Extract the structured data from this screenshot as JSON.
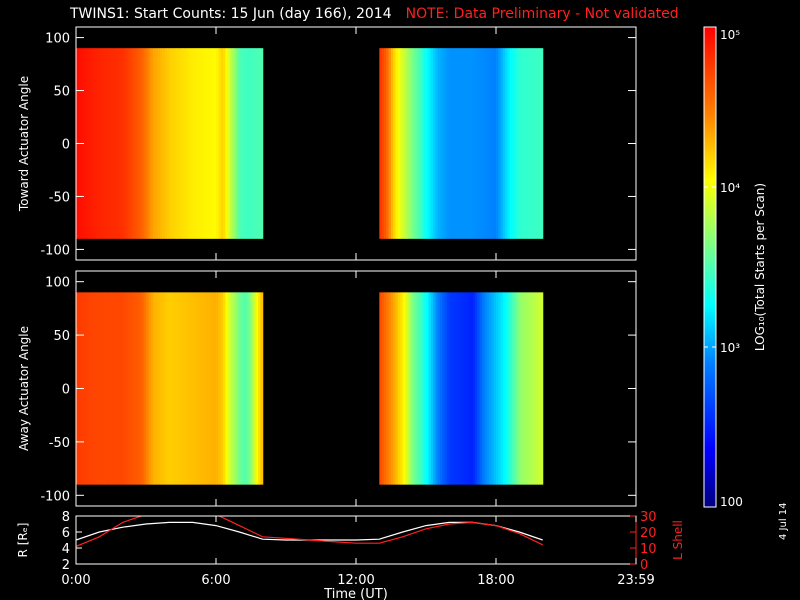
{
  "title": "TWINS1: Start Counts: 15 Jun (day 166), 2014",
  "note": "NOTE: Data Preliminary - Not validated",
  "datestamp": "4 Jul 14",
  "colors": {
    "background": "#000000",
    "foreground": "#ffffff",
    "note": "#ff2020",
    "lshell": "#ff2020",
    "r_line": "#ffffff"
  },
  "chart_data": [
    {
      "type": "heatmap",
      "panel": "toward",
      "ylabel": "Toward Actuator Angle",
      "ylim": [
        -110,
        110
      ],
      "yticks": [
        100,
        50,
        0,
        -50,
        -100
      ],
      "xlim": [
        0,
        24
      ],
      "y_range": [
        -90,
        90
      ],
      "segments": [
        {
          "start_hr": 0.0,
          "end_hr": 8.0
        },
        {
          "start_hr": 13.0,
          "end_hr": 20.0
        }
      ],
      "log_counts_profile": [
        {
          "t": 0.0,
          "v": 4.95
        },
        {
          "t": 0.5,
          "v": 4.9
        },
        {
          "t": 1.0,
          "v": 4.85
        },
        {
          "t": 2.0,
          "v": 4.8
        },
        {
          "t": 2.8,
          "v": 4.6
        },
        {
          "t": 3.3,
          "v": 4.35
        },
        {
          "t": 4.0,
          "v": 4.2
        },
        {
          "t": 5.0,
          "v": 4.1
        },
        {
          "t": 6.0,
          "v": 4.05
        },
        {
          "t": 6.3,
          "v": 4.2
        },
        {
          "t": 6.6,
          "v": 3.9
        },
        {
          "t": 7.0,
          "v": 3.5
        },
        {
          "t": 7.3,
          "v": 3.45
        },
        {
          "t": 8.0,
          "v": 3.5
        },
        {
          "t": 13.0,
          "v": 4.8
        },
        {
          "t": 13.3,
          "v": 4.6
        },
        {
          "t": 13.6,
          "v": 4.2
        },
        {
          "t": 14.0,
          "v": 3.9
        },
        {
          "t": 14.5,
          "v": 3.6
        },
        {
          "t": 15.0,
          "v": 3.3
        },
        {
          "t": 15.5,
          "v": 3.05
        },
        {
          "t": 16.0,
          "v": 2.95
        },
        {
          "t": 17.0,
          "v": 2.95
        },
        {
          "t": 18.0,
          "v": 2.9
        },
        {
          "t": 18.5,
          "v": 3.2
        },
        {
          "t": 19.0,
          "v": 3.4
        },
        {
          "t": 20.0,
          "v": 3.45
        }
      ]
    },
    {
      "type": "heatmap",
      "panel": "away",
      "ylabel": "Away Actuator Angle",
      "ylim": [
        -110,
        110
      ],
      "yticks": [
        100,
        50,
        0,
        -50,
        -100
      ],
      "xlim": [
        0,
        24
      ],
      "y_range": [
        -90,
        90
      ],
      "segments": [
        {
          "start_hr": 0.0,
          "end_hr": 8.0
        },
        {
          "start_hr": 13.0,
          "end_hr": 20.0
        }
      ],
      "log_counts_profile": [
        {
          "t": 0.0,
          "v": 4.75
        },
        {
          "t": 1.0,
          "v": 4.7
        },
        {
          "t": 2.0,
          "v": 4.7
        },
        {
          "t": 2.8,
          "v": 4.6
        },
        {
          "t": 3.3,
          "v": 4.3
        },
        {
          "t": 4.0,
          "v": 4.2
        },
        {
          "t": 5.0,
          "v": 4.25
        },
        {
          "t": 6.0,
          "v": 4.3
        },
        {
          "t": 6.3,
          "v": 4.2
        },
        {
          "t": 6.6,
          "v": 3.9
        },
        {
          "t": 7.0,
          "v": 3.6
        },
        {
          "t": 7.3,
          "v": 3.5
        },
        {
          "t": 8.0,
          "v": 4.3
        },
        {
          "t": 13.0,
          "v": 4.7
        },
        {
          "t": 13.5,
          "v": 4.4
        },
        {
          "t": 14.0,
          "v": 4.1
        },
        {
          "t": 14.5,
          "v": 3.6
        },
        {
          "t": 15.0,
          "v": 3.3
        },
        {
          "t": 15.5,
          "v": 2.9
        },
        {
          "t": 16.0,
          "v": 2.6
        },
        {
          "t": 17.0,
          "v": 2.5
        },
        {
          "t": 17.5,
          "v": 2.9
        },
        {
          "t": 18.0,
          "v": 3.1
        },
        {
          "t": 18.5,
          "v": 3.3
        },
        {
          "t": 19.0,
          "v": 3.7
        },
        {
          "t": 20.0,
          "v": 3.9
        }
      ]
    },
    {
      "type": "line",
      "panel": "orbit",
      "xlabel": "Time (UT)",
      "xlim": [
        0,
        24
      ],
      "xticks": [
        0,
        6,
        12,
        18,
        24
      ],
      "xticklabels": [
        "0:00",
        "6:00",
        "12:00",
        "18:00",
        "23:59"
      ],
      "ylabel_left": "R [Rₑ]",
      "ylim_left": [
        2,
        8
      ],
      "yticks_left": [
        8,
        6,
        4,
        2
      ],
      "ylabel_right": "L Shell",
      "ylim_right": [
        0,
        30
      ],
      "yticks_right": [
        30,
        20,
        10,
        0
      ],
      "series": [
        {
          "name": "R [Rₑ]",
          "axis": "left",
          "color": "#ffffff",
          "x": [
            0,
            1,
            2,
            3,
            4,
            5,
            6,
            7,
            8,
            9,
            10,
            11,
            12,
            13,
            14,
            15,
            16,
            17,
            18,
            19,
            20
          ],
          "y": [
            5.0,
            6.0,
            6.6,
            7.0,
            7.2,
            7.2,
            6.8,
            6.0,
            5.1,
            5.0,
            5.0,
            5.0,
            5.0,
            5.1,
            6.0,
            6.8,
            7.2,
            7.2,
            6.8,
            6.0,
            5.0
          ]
        },
        {
          "name": "L Shell",
          "axis": "right",
          "color": "#ff2020",
          "x": [
            0,
            1,
            2,
            3,
            6,
            7,
            8,
            9,
            10,
            11,
            12,
            13,
            14,
            15,
            16,
            17,
            18,
            19,
            20
          ],
          "y": [
            11,
            17,
            26,
            31,
            31,
            24,
            17,
            16,
            15,
            14,
            13,
            13,
            17,
            22,
            25,
            26,
            24,
            19,
            12
          ]
        }
      ]
    },
    {
      "type": "colorbar",
      "label": "LOG₁₀(Total Starts per Scan)",
      "range_log": [
        2,
        5
      ],
      "ticks": [
        {
          "value": 5,
          "label": "10⁵"
        },
        {
          "value": 4,
          "label": "10⁴"
        },
        {
          "value": 3,
          "label": "10³"
        },
        {
          "value": 2,
          "label": "100"
        }
      ]
    }
  ]
}
